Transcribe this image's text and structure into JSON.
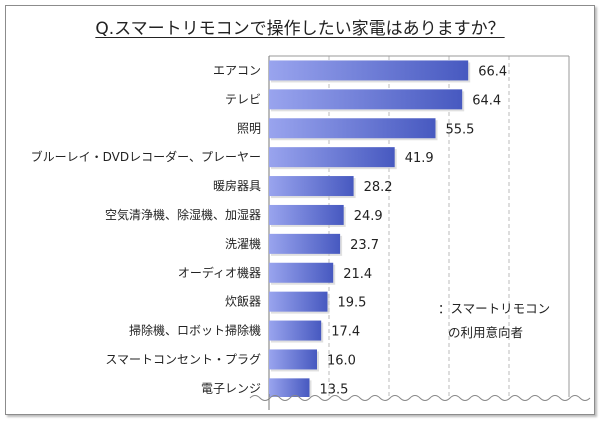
{
  "chart_data": {
    "type": "bar",
    "orientation": "horizontal",
    "title": "Q.スマートリモコンで操作したい家電はありますか？",
    "categories": [
      "エアコン",
      "テレビ",
      "照明",
      "ブルーレイ・DVDレコーダー、プレーヤー",
      "暖房器具",
      "空気清浄機、除湿機、加湿器",
      "洗濯機",
      "オーディオ機器",
      "炊飯器",
      "掃除機、ロボット掃除機",
      "スマートコンセント・プラグ",
      "電子レンジ"
    ],
    "values": [
      66.4,
      64.4,
      55.5,
      41.9,
      28.2,
      24.9,
      23.7,
      21.4,
      19.5,
      17.4,
      16.0,
      13.5
    ],
    "xlim": [
      0,
      100
    ],
    "gridlines": [
      20,
      40,
      60,
      80
    ],
    "grid": true,
    "bar_color_start": "#99a4ee",
    "bar_color_end": "#4759c0",
    "legend": {
      "line1": "：スマートリモコン",
      "line2": "の利用意向者",
      "placement": "bottom-right"
    }
  }
}
